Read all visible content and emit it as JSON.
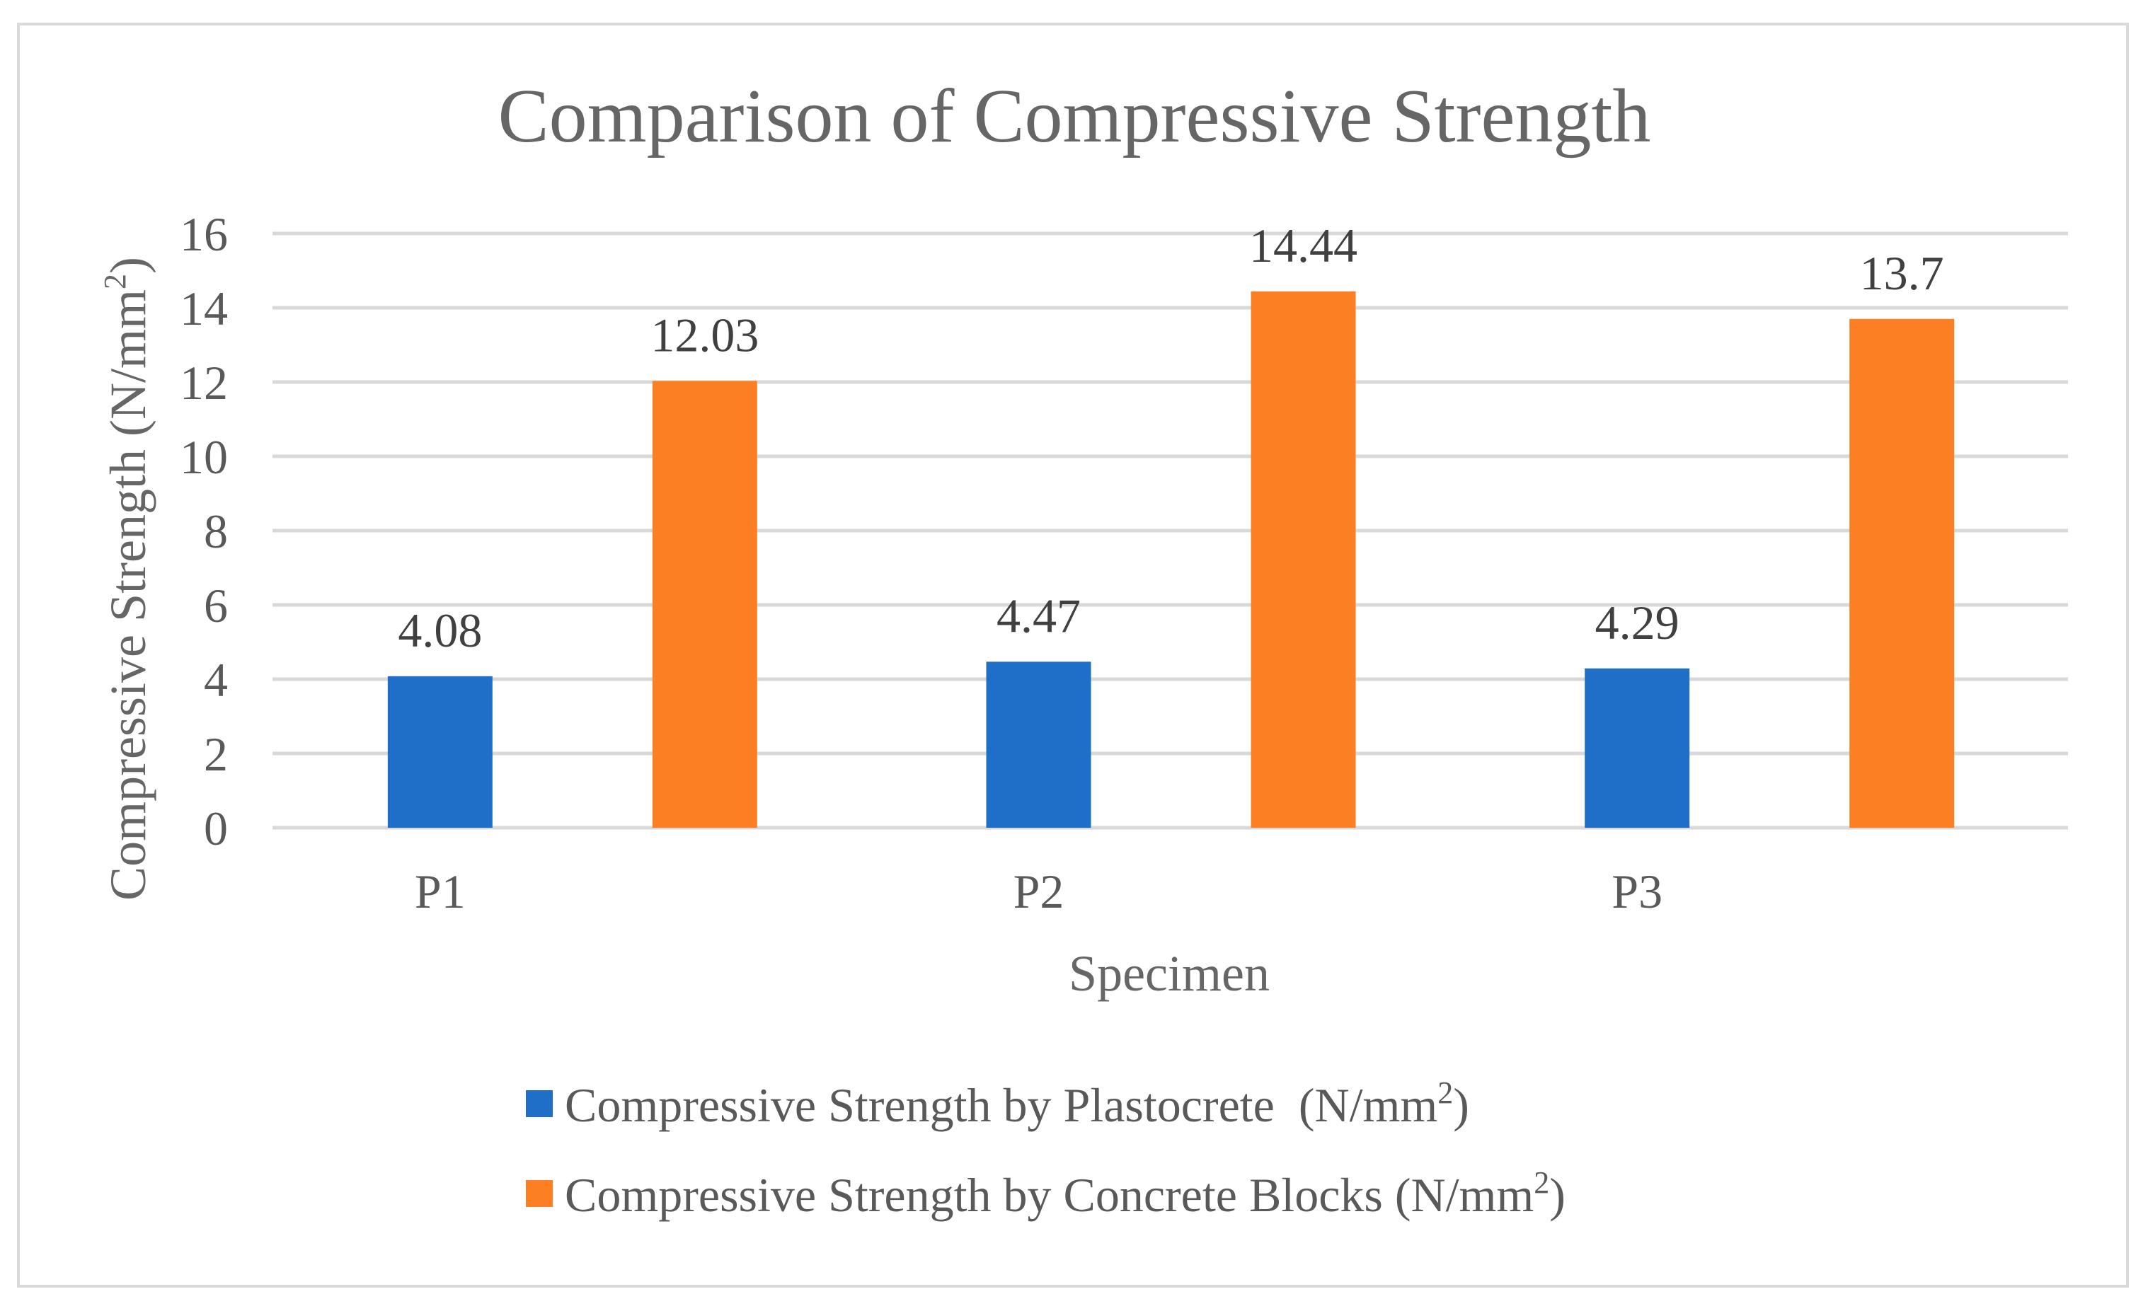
{
  "chart_data": {
    "type": "bar",
    "title": "Comparison of Compressive Strength",
    "xlabel": "Specimen",
    "ylabel": {
      "main": "Compressive Strength (N/mm",
      "sup": "2",
      "end": ")"
    },
    "categories": [
      "P1",
      "P2",
      "P3"
    ],
    "ylim": [
      0,
      16
    ],
    "yticks": [
      0,
      2,
      4,
      6,
      8,
      10,
      12,
      14,
      16
    ],
    "grid": true,
    "legend_position": "bottom",
    "series": [
      {
        "name": "Compressive Strength by Plastocrete  (N/mm",
        "name_sup": "2",
        "name_end": ")",
        "color": "#1f6fc8",
        "values": [
          4.08,
          4.47,
          4.29
        ],
        "labels": [
          "4.08",
          "4.47",
          "4.29"
        ]
      },
      {
        "name": "Compressive Strength by Concrete Blocks (N/mm",
        "name_sup": "2",
        "name_end": ")",
        "color": "#fd7f23",
        "values": [
          12.03,
          14.44,
          13.7
        ],
        "labels": [
          "12.03",
          "14.44",
          "13.7"
        ]
      }
    ]
  }
}
